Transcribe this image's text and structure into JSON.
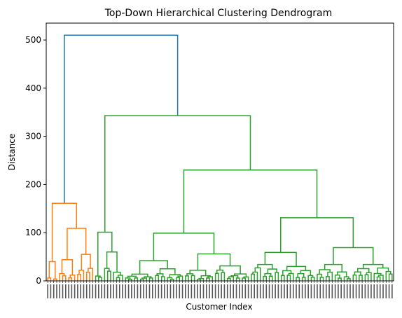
{
  "chart_data": {
    "type": "dendrogram",
    "title": "Top-Down Hierarchical Clustering Dendrogram",
    "xlabel": "Customer Index",
    "ylabel": "Distance",
    "ylim": [
      0,
      535
    ],
    "yticks": [
      0,
      100,
      200,
      300,
      400,
      500
    ],
    "colors": {
      "root": "#1f77b4",
      "cluster1": "#ff7f0e",
      "cluster2": "#2ca02c"
    },
    "leaf_count_approx": 200,
    "leaf_labels": "dense numeric customer indices (illegible, rotated)",
    "merges": {
      "root_distance": 510,
      "orange_cluster_top": 161,
      "orange_sub": [
        109,
        55,
        44,
        40,
        26,
        22,
        15,
        12,
        9,
        6
      ],
      "green_top": 343,
      "green_left_branch": [
        101,
        60,
        26,
        18,
        10
      ],
      "green_right": 230,
      "green_right_left": 99,
      "green_right_left_subs": [
        42,
        56,
        31,
        22,
        25,
        14,
        10
      ],
      "green_right_right": 131,
      "green_right_right_subs": [
        59,
        69,
        30,
        34,
        20,
        16,
        18,
        12
      ]
    }
  }
}
